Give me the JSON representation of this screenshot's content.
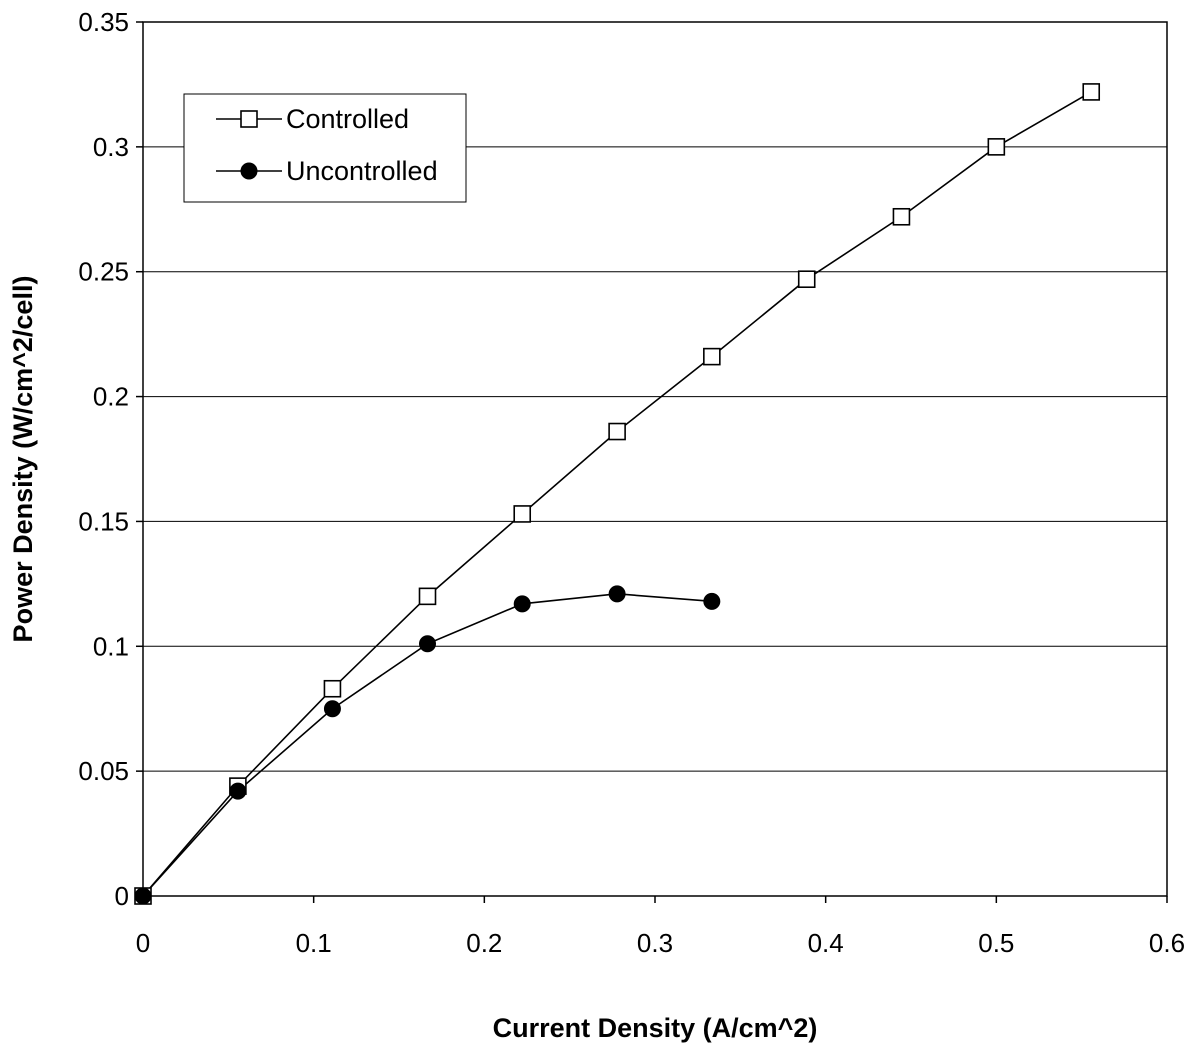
{
  "chart_data": {
    "type": "scatter",
    "title": "",
    "xlabel": "Current Density (A/cm^2)",
    "ylabel": "Power Density (W/cm^2/cell)",
    "xlim": [
      0,
      0.6
    ],
    "ylim": [
      0,
      0.35
    ],
    "x_ticks": [
      0,
      0.1,
      0.2,
      0.3,
      0.4,
      0.5,
      0.6
    ],
    "x_tick_labels": [
      "0",
      "0.1",
      "0.2",
      "0.3",
      "0.4",
      "0.5",
      "0.6"
    ],
    "y_ticks": [
      0,
      0.05,
      0.1,
      0.15,
      0.2,
      0.25,
      0.3,
      0.35
    ],
    "y_tick_labels": [
      "0",
      "0.05",
      "0.1",
      "0.15",
      "0.2",
      "0.25",
      "0.3",
      "0.35"
    ],
    "grid": "horizontal",
    "legend_position": "top-left",
    "series": [
      {
        "name": "Controlled",
        "marker": "open-square",
        "color": "#000000",
        "x": [
          0,
          0.0556,
          0.111,
          0.1667,
          0.2222,
          0.2778,
          0.3333,
          0.3889,
          0.4444,
          0.5,
          0.5556
        ],
        "y": [
          0,
          0.044,
          0.083,
          0.12,
          0.153,
          0.186,
          0.216,
          0.247,
          0.272,
          0.3,
          0.322
        ]
      },
      {
        "name": "Uncontrolled",
        "marker": "filled-circle",
        "color": "#000000",
        "x": [
          0,
          0.0556,
          0.111,
          0.1667,
          0.2222,
          0.2778,
          0.3333
        ],
        "y": [
          0,
          0.042,
          0.075,
          0.101,
          0.117,
          0.121,
          0.118
        ]
      }
    ]
  }
}
